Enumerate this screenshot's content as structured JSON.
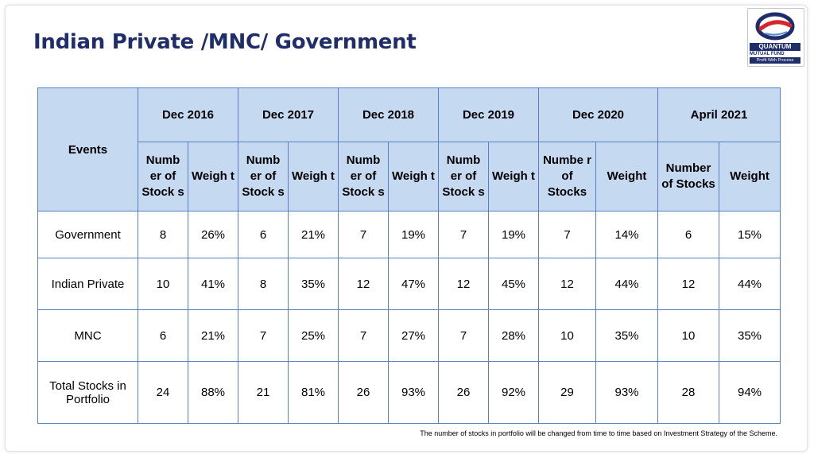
{
  "title": "Indian Private /MNC/ Government",
  "logo": {
    "brand": "QUANTUM",
    "line1": "MUTUAL FUND",
    "line2": "Profit With Process"
  },
  "table": {
    "events_label": "Events",
    "periods": [
      "Dec 2016",
      "Dec 2017",
      "Dec 2018",
      "Dec 2019",
      "Dec 2020",
      "April 2021"
    ],
    "sub_narrow": {
      "stocks": "Numb er of Stock s",
      "weight": "Weigh t"
    },
    "sub_wide": {
      "stocks": "Numbe r of Stocks",
      "weight": "Weight"
    },
    "sub_april": {
      "stocks": "Number of Stocks",
      "weight": "Weight"
    },
    "rows": [
      {
        "label": "Government",
        "cells": [
          "8",
          "26%",
          "6",
          "21%",
          "7",
          "19%",
          "7",
          "19%",
          "7",
          "14%",
          "6",
          "15%"
        ]
      },
      {
        "label": "Indian Private",
        "cells": [
          "10",
          "41%",
          "8",
          "35%",
          "12",
          "47%",
          "12",
          "45%",
          "12",
          "44%",
          "12",
          "44%"
        ]
      },
      {
        "label": "MNC",
        "cells": [
          "6",
          "21%",
          "7",
          "25%",
          "7",
          "27%",
          "7",
          "28%",
          "10",
          "35%",
          "10",
          "35%"
        ]
      },
      {
        "label": "Total Stocks in Portfolio",
        "cells": [
          "24",
          "88%",
          "21",
          "81%",
          "26",
          "93%",
          "26",
          "92%",
          "29",
          "93%",
          "28",
          "94%"
        ]
      }
    ]
  },
  "footnote": "The number of stocks in portfolio will be changed from time to time based on Investment Strategy of the Scheme.",
  "colors": {
    "header_bg": "#c5d9f1",
    "border": "#5b7fc7",
    "title": "#1f2d6b",
    "logo_red": "#d7262b"
  }
}
